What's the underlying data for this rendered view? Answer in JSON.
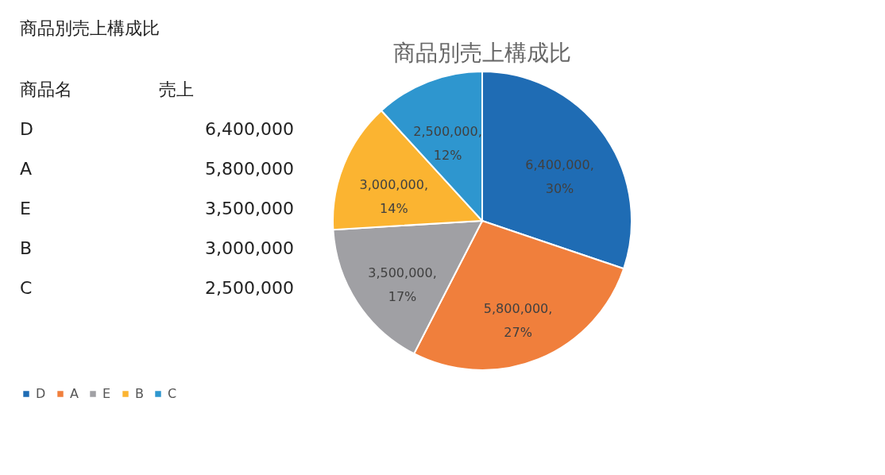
{
  "chart_data": [
    {
      "type": "other",
      "title": "商品別売上構成比",
      "annotations": [
        "商品名",
        "売上",
        "D",
        "6,400,000",
        "A",
        "5,800,000",
        "E",
        "3,500,000",
        "B",
        "3,000,000",
        "C",
        "2,500,000"
      ]
    },
    {
      "type": "pie",
      "title": "商品別売上構成比",
      "categories": [
        "D",
        "A",
        "E",
        "B",
        "C"
      ],
      "values": [
        6400000,
        5800000,
        3500000,
        3000000,
        2500000
      ],
      "colors": [
        "#1f6cb4",
        "#f07f3c",
        "#a0a0a4",
        "#fbb431",
        "#2e96cf"
      ],
      "value_labels": [
        "6,400,000, 30%",
        "5,800,000, 27%",
        "3,500,000, 17%",
        "3,000,000, 14%",
        "2,500,000, 12%"
      ],
      "legend": "bottom"
    }
  ]
}
